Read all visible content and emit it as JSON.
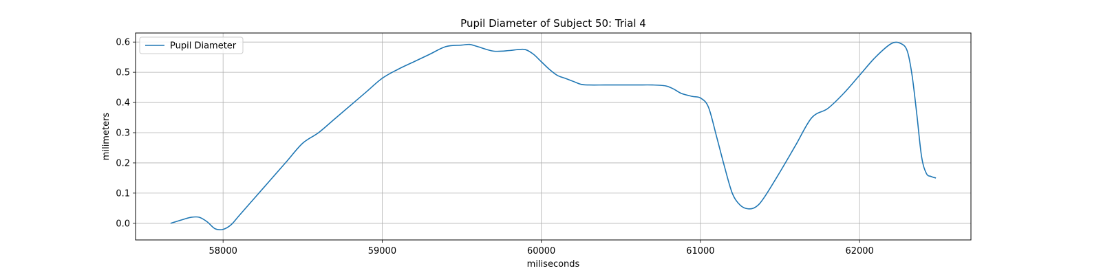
{
  "chart_data": {
    "type": "line",
    "title": "Pupil Diameter of Subject 50: Trial 4",
    "xlabel": "miliseconds",
    "ylabel": "milimeters",
    "xlim": [
      57450,
      62700
    ],
    "ylim": [
      -0.055,
      0.63
    ],
    "xticks": [
      58000,
      59000,
      60000,
      61000,
      62000
    ],
    "yticks": [
      0.0,
      0.1,
      0.2,
      0.3,
      0.4,
      0.5,
      0.6
    ],
    "ytick_labels": [
      "0.0",
      "0.1",
      "0.2",
      "0.3",
      "0.4",
      "0.5",
      "0.6"
    ],
    "grid": true,
    "legend_position": "top-left",
    "series": [
      {
        "name": "Pupil Diameter",
        "color": "#1f77b4",
        "x": [
          57670,
          57750,
          57800,
          57850,
          57900,
          57950,
          58000,
          58050,
          58100,
          58200,
          58300,
          58400,
          58500,
          58600,
          58700,
          58800,
          58900,
          59000,
          59100,
          59200,
          59300,
          59400,
          59500,
          59550,
          59600,
          59700,
          59800,
          59850,
          59900,
          59950,
          60000,
          60050,
          60100,
          60150,
          60200,
          60250,
          60300,
          60400,
          60500,
          60600,
          60700,
          60780,
          60830,
          60880,
          60950,
          61000,
          61050,
          61100,
          61150,
          61200,
          61250,
          61300,
          61350,
          61400,
          61500,
          61600,
          61700,
          61800,
          61900,
          62000,
          62100,
          62200,
          62260,
          62300,
          62330,
          62360,
          62390,
          62420,
          62450,
          62480
        ],
        "y": [
          0.0,
          0.013,
          0.02,
          0.02,
          0.005,
          -0.018,
          -0.02,
          -0.005,
          0.025,
          0.085,
          0.145,
          0.205,
          0.265,
          0.3,
          0.345,
          0.39,
          0.435,
          0.48,
          0.51,
          0.535,
          0.56,
          0.585,
          0.59,
          0.592,
          0.585,
          0.57,
          0.572,
          0.575,
          0.575,
          0.56,
          0.535,
          0.51,
          0.49,
          0.48,
          0.47,
          0.46,
          0.458,
          0.458,
          0.458,
          0.458,
          0.458,
          0.455,
          0.445,
          0.43,
          0.42,
          0.415,
          0.385,
          0.29,
          0.19,
          0.1,
          0.06,
          0.048,
          0.055,
          0.085,
          0.17,
          0.26,
          0.35,
          0.38,
          0.43,
          0.49,
          0.55,
          0.595,
          0.595,
          0.57,
          0.49,
          0.36,
          0.22,
          0.165,
          0.155,
          0.15
        ]
      }
    ]
  }
}
